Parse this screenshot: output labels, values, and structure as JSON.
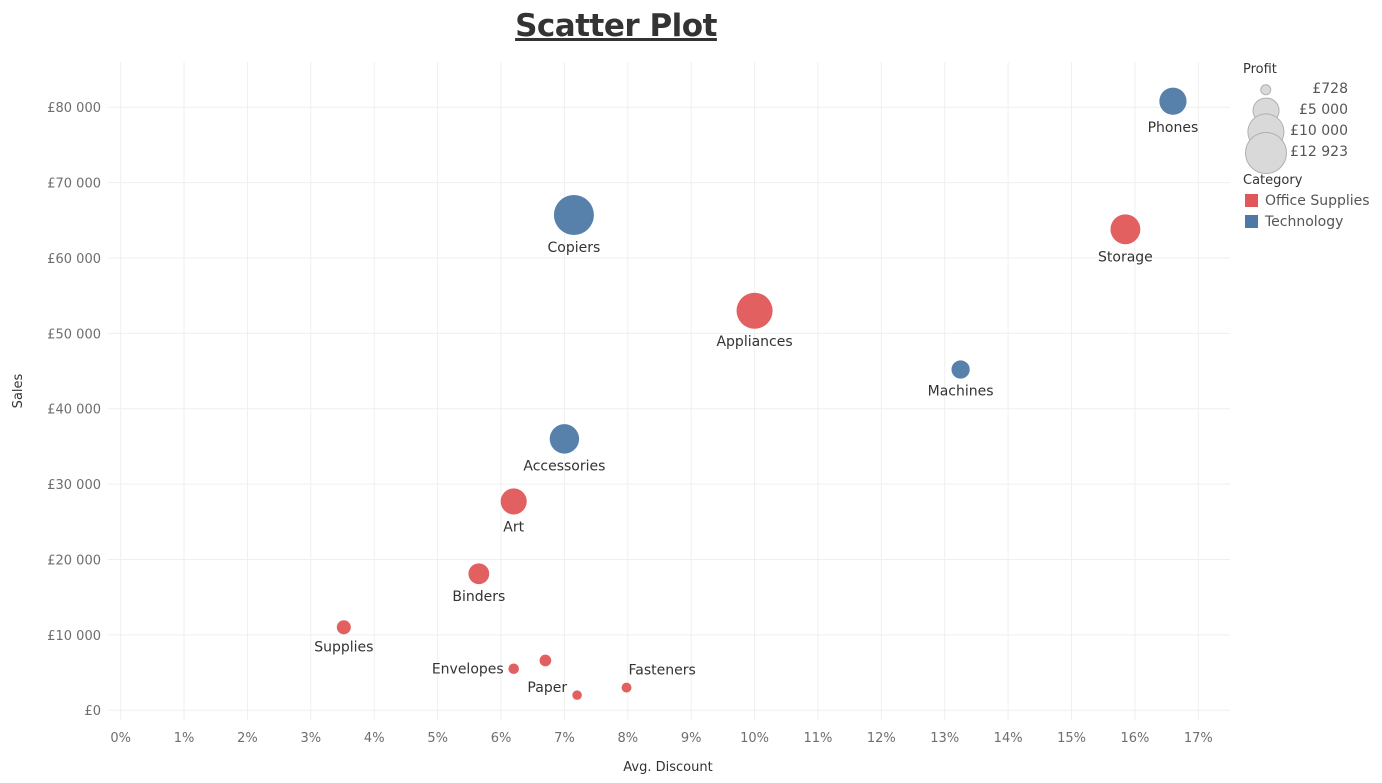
{
  "title": "Scatter Plot",
  "legend": {
    "profit_title": "Profit",
    "sizes": [
      {
        "label": "£728",
        "value": 728
      },
      {
        "label": "£5 000",
        "value": 5000
      },
      {
        "label": "£10 000",
        "value": 10000
      },
      {
        "label": "£12 923",
        "value": 12923
      }
    ],
    "category_title": "Category",
    "categories": [
      {
        "label": "Office Supplies",
        "color": "#e15759"
      },
      {
        "label": "Technology",
        "color": "#4e79a7"
      }
    ]
  },
  "chart_data": {
    "type": "scatter",
    "title": "Scatter Plot",
    "xlabel": "Avg. Discount",
    "ylabel": "Sales",
    "xlim": [
      -0.002,
      0.175
    ],
    "ylim": [
      -1300,
      86000
    ],
    "xticks": [
      0,
      0.01,
      0.02,
      0.03,
      0.04,
      0.05,
      0.06,
      0.07,
      0.08,
      0.09,
      0.1,
      0.11,
      0.12,
      0.13,
      0.14,
      0.15,
      0.16,
      0.17
    ],
    "xtick_labels": [
      "0%",
      "1%",
      "2%",
      "3%",
      "4%",
      "5%",
      "6%",
      "7%",
      "8%",
      "9%",
      "10%",
      "11%",
      "12%",
      "13%",
      "14%",
      "15%",
      "16%",
      "17%"
    ],
    "yticks": [
      0,
      10000,
      20000,
      30000,
      40000,
      50000,
      60000,
      70000,
      80000
    ],
    "ytick_labels": [
      "£0",
      "£10 000",
      "£20 000",
      "£30 000",
      "£40 000",
      "£50 000",
      "£60 000",
      "£70 000",
      "£80 000"
    ],
    "grid": true,
    "legend_position": "right",
    "size_encoding": "Profit",
    "color_encoding": "Category",
    "points": [
      {
        "label": "Phones",
        "category": "Technology",
        "x": 0.166,
        "y": 80800,
        "profit": 6000
      },
      {
        "label": "Copiers",
        "category": "Technology",
        "x": 0.0715,
        "y": 65700,
        "profit": 12923
      },
      {
        "label": "Storage",
        "category": "Office Supplies",
        "x": 0.1585,
        "y": 63800,
        "profit": 7200
      },
      {
        "label": "Appliances",
        "category": "Office Supplies",
        "x": 0.1,
        "y": 53000,
        "profit": 10500
      },
      {
        "label": "Machines",
        "category": "Technology",
        "x": 0.1325,
        "y": 45200,
        "profit": 2700
      },
      {
        "label": "Accessories",
        "category": "Technology",
        "x": 0.07,
        "y": 36000,
        "profit": 7000
      },
      {
        "label": "Art",
        "category": "Office Supplies",
        "x": 0.062,
        "y": 27700,
        "profit": 5500
      },
      {
        "label": "Binders",
        "category": "Office Supplies",
        "x": 0.0565,
        "y": 18100,
        "profit": 3500
      },
      {
        "label": "Supplies",
        "category": "Office Supplies",
        "x": 0.0352,
        "y": 11000,
        "profit": 1600
      },
      {
        "label": "Envelopes",
        "category": "Office Supplies",
        "x": 0.062,
        "y": 5500,
        "profit": 900
      },
      {
        "label": "",
        "category": "Office Supplies",
        "x": 0.067,
        "y": 6600,
        "profit": 1100
      },
      {
        "label": "Paper",
        "category": "Office Supplies",
        "x": 0.072,
        "y": 2000,
        "profit": 728
      },
      {
        "label": "Fasteners",
        "category": "Office Supplies",
        "x": 0.0798,
        "y": 3000,
        "profit": 800
      }
    ]
  }
}
